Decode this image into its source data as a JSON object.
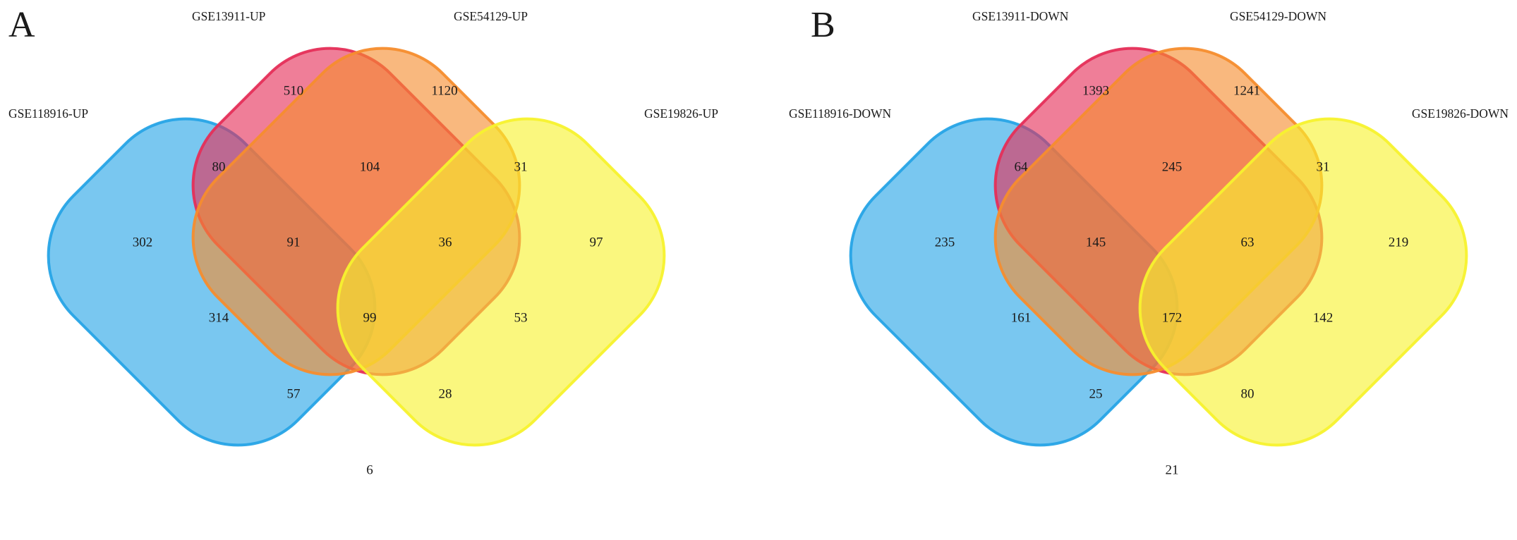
{
  "figure": {
    "panels": [
      {
        "letter": "A",
        "sets": [
          {
            "label": "GSE118916-UP",
            "color": "#27a4e6"
          },
          {
            "label": "GSE13911-UP",
            "color": "#e52f58"
          },
          {
            "label": "GSE54129-UP",
            "color": "#f68d2e"
          },
          {
            "label": "GSE19826-UP",
            "color": "#f7f22e"
          }
        ],
        "regions": [
          {
            "sets": "B",
            "value": "302"
          },
          {
            "sets": "R",
            "value": "510"
          },
          {
            "sets": "O",
            "value": "1120"
          },
          {
            "sets": "Y",
            "value": "97"
          },
          {
            "sets": "BR",
            "value": "80"
          },
          {
            "sets": "RO",
            "value": "104"
          },
          {
            "sets": "OY",
            "value": "31"
          },
          {
            "sets": "BRO",
            "value": "91"
          },
          {
            "sets": "ROY",
            "value": "36"
          },
          {
            "sets": "BO",
            "value": "314"
          },
          {
            "sets": "BROY",
            "value": "99"
          },
          {
            "sets": "RY",
            "value": "53"
          },
          {
            "sets": "BOY",
            "value": "57"
          },
          {
            "sets": "BRY",
            "value": "28"
          },
          {
            "sets": "BY",
            "value": "6"
          }
        ]
      },
      {
        "letter": "B",
        "sets": [
          {
            "label": "GSE118916-DOWN",
            "color": "#27a4e6"
          },
          {
            "label": "GSE13911-DOWN",
            "color": "#e52f58"
          },
          {
            "label": "GSE54129-DOWN",
            "color": "#f68d2e"
          },
          {
            "label": "GSE19826-DOWN",
            "color": "#f7f22e"
          }
        ],
        "regions": [
          {
            "sets": "B",
            "value": "235"
          },
          {
            "sets": "R",
            "value": "1393"
          },
          {
            "sets": "O",
            "value": "1241"
          },
          {
            "sets": "Y",
            "value": "219"
          },
          {
            "sets": "BR",
            "value": "64"
          },
          {
            "sets": "RO",
            "value": "245"
          },
          {
            "sets": "OY",
            "value": "31"
          },
          {
            "sets": "BRO",
            "value": "145"
          },
          {
            "sets": "ROY",
            "value": "63"
          },
          {
            "sets": "BO",
            "value": "161"
          },
          {
            "sets": "BROY",
            "value": "172"
          },
          {
            "sets": "RY",
            "value": "142"
          },
          {
            "sets": "BOY",
            "value": "25"
          },
          {
            "sets": "BRY",
            "value": "80"
          },
          {
            "sets": "BY",
            "value": "21"
          }
        ]
      }
    ]
  }
}
